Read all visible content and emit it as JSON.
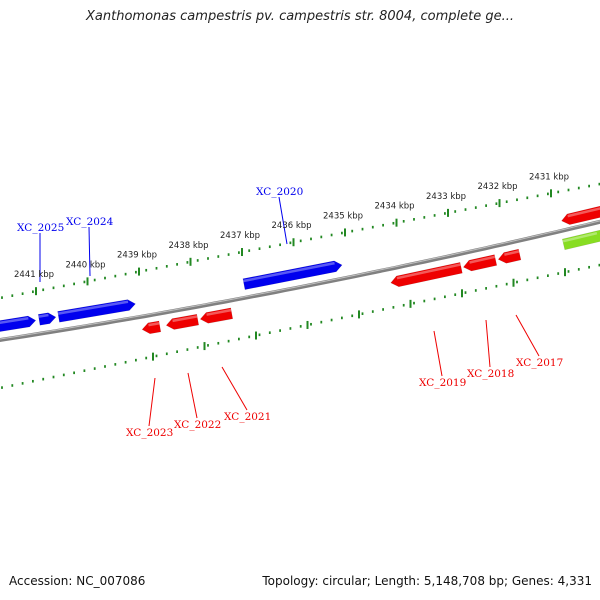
{
  "title": "Xanthomonas campestris pv. campestris str. 8004, complete ge...",
  "footer": {
    "accession": "Accession: NC_007086",
    "summary": "Topology: circular; Length: 5,148,708 bp; Genes: 4,331"
  },
  "colors": {
    "forward_gene": "#0000ee",
    "reverse_gene": "#ee0000",
    "highlight_gene": "#88dd22",
    "backbone": "#808080",
    "ticks": "#228822"
  },
  "ticks": [
    {
      "label": "2441 kbp",
      "kbp": 2441
    },
    {
      "label": "2440 kbp",
      "kbp": 2440
    },
    {
      "label": "2439 kbp",
      "kbp": 2439
    },
    {
      "label": "2438 kbp",
      "kbp": 2438
    },
    {
      "label": "2437 kbp",
      "kbp": 2437
    },
    {
      "label": "2436 kbp",
      "kbp": 2436
    },
    {
      "label": "2435 kbp",
      "kbp": 2435
    },
    {
      "label": "2434 kbp",
      "kbp": 2434
    },
    {
      "label": "2433 kbp",
      "kbp": 2433
    },
    {
      "label": "2432 kbp",
      "kbp": 2432
    },
    {
      "label": "2431 kbp",
      "kbp": 2431
    }
  ],
  "genes_forward": [
    {
      "label": "XC_2025"
    },
    {
      "label": "XC_2024"
    },
    {
      "label": "XC_2020"
    }
  ],
  "genes_reverse": [
    {
      "label": "XC_2023"
    },
    {
      "label": "XC_2022"
    },
    {
      "label": "XC_2021"
    },
    {
      "label": "XC_2019"
    },
    {
      "label": "XC_2018"
    },
    {
      "label": "XC_2017"
    }
  ]
}
